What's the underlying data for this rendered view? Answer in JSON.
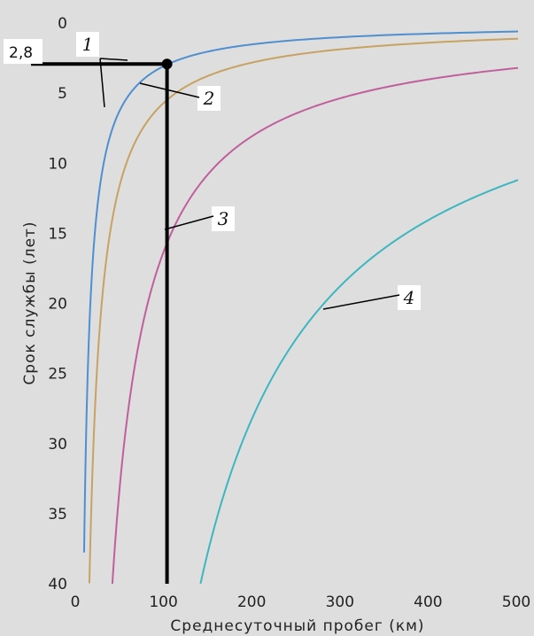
{
  "chart_data": {
    "type": "line",
    "title": "",
    "xlabel": "Среднесуточный пробег (км)",
    "ylabel": "Срок службы (лет)",
    "xlim": [
      0,
      500
    ],
    "ylim": [
      0,
      40
    ],
    "y_inverted": true,
    "grid": false,
    "x_ticks": [
      0,
      100,
      200,
      300,
      400,
      500
    ],
    "y_ticks": [
      0,
      5,
      10,
      15,
      20,
      25,
      30,
      35,
      40
    ],
    "x_tick_labels": [
      "0",
      "100",
      "200",
      "300",
      "400",
      "500"
    ],
    "y_tick_labels": [
      "0",
      "5",
      "10",
      "15",
      "20",
      "25",
      "30",
      "35",
      "40"
    ],
    "series": [
      {
        "name": "1",
        "color": "#4f8fcf",
        "x": [
          8,
          10,
          12,
          15,
          20,
          30,
          40,
          60,
          100,
          150,
          200,
          300,
          400,
          500
        ],
        "y": [
          40,
          31,
          25,
          20,
          15,
          10,
          7.5,
          5,
          3,
          2,
          1.5,
          1,
          0.75,
          0.6
        ]
      },
      {
        "name": "2",
        "color": "#c7a262",
        "x": [
          14,
          16,
          20,
          25,
          30,
          40,
          60,
          80,
          100,
          150,
          200,
          300,
          400,
          500
        ],
        "y": [
          40,
          35,
          28,
          22.4,
          18.7,
          14,
          9.3,
          7,
          5.6,
          3.7,
          2.8,
          1.9,
          1.4,
          1.1
        ]
      },
      {
        "name": "3",
        "color": "#c05f9c",
        "x": [
          40,
          50,
          60,
          80,
          100,
          120,
          150,
          200,
          250,
          300,
          350,
          400,
          450,
          500
        ],
        "y": [
          40,
          32,
          26.7,
          20,
          16,
          13.3,
          10.7,
          8,
          6.4,
          5.3,
          4.6,
          4,
          3.6,
          3.2
        ]
      },
      {
        "name": "4",
        "color": "#3cb6bf",
        "x": [
          140,
          160,
          180,
          200,
          250,
          280,
          300,
          350,
          400,
          450,
          500
        ],
        "y": [
          40,
          35,
          31.1,
          28,
          22.4,
          20,
          18.7,
          16,
          14,
          12.4,
          11.2
        ]
      }
    ],
    "annotations": {
      "point": {
        "x": 100,
        "y": 2.8,
        "label": "2,8"
      },
      "curve_labels": [
        "1",
        "2",
        "3",
        "4"
      ]
    }
  }
}
